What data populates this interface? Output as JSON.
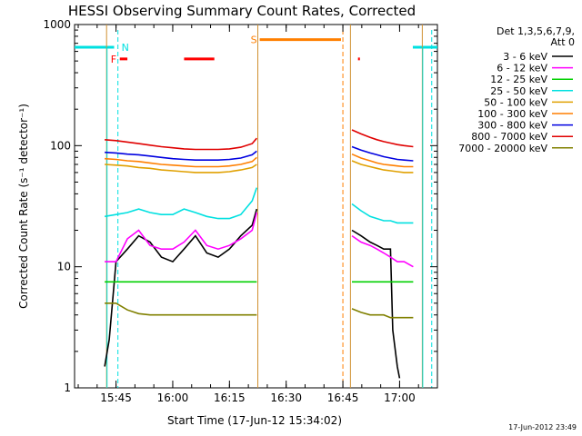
{
  "chart_data": {
    "type": "line",
    "title": "HESSI Observing Summary Count Rates, Corrected",
    "xlabel": "Start Time (17-Jun-12 15:34:02)",
    "ylabel": "Corrected Count Rate (s⁻¹ detector⁻¹)",
    "y_scale": "log",
    "ylim": [
      1,
      1000
    ],
    "xlim": [
      "15:34:02",
      "17:10:00"
    ],
    "y_ticks": [
      "1",
      "10",
      "100",
      "1000"
    ],
    "x_ticks": [
      {
        "t": "15:45",
        "label": "15:45"
      },
      {
        "t": "16:00",
        "label": "16:00"
      },
      {
        "t": "16:15",
        "label": "16:15"
      },
      {
        "t": "16:30",
        "label": "16:30"
      },
      {
        "t": "16:45",
        "label": "16:45"
      },
      {
        "t": "17:00",
        "label": "17:00"
      }
    ],
    "legend": {
      "header": [
        "Det 1,3,5,6,7,9,",
        "Att 0"
      ],
      "placement": "right-outside"
    },
    "footer_stamp": "17-Jun-2012 23:49",
    "segments": [
      {
        "start": "15:42:30",
        "end": "16:22:30"
      },
      {
        "start": "16:47:00",
        "end": "17:06:00"
      }
    ],
    "series": [
      {
        "name": "3 - 6 keV",
        "color": "#000000",
        "points_seg1": [
          [
            15.7,
            1.5
          ],
          [
            15.72,
            2.5
          ],
          [
            15.75,
            11
          ],
          [
            15.8,
            14
          ],
          [
            15.85,
            18
          ],
          [
            15.9,
            16
          ],
          [
            15.95,
            12
          ],
          [
            16.0,
            11
          ],
          [
            16.05,
            14
          ],
          [
            16.1,
            18
          ],
          [
            16.15,
            13
          ],
          [
            16.2,
            12
          ],
          [
            16.25,
            14
          ],
          [
            16.3,
            18
          ],
          [
            16.35,
            22
          ],
          [
            16.37,
            30
          ]
        ],
        "points_seg2": [
          [
            16.79,
            20
          ],
          [
            16.83,
            18
          ],
          [
            16.87,
            16
          ],
          [
            16.9,
            15
          ],
          [
            16.93,
            14
          ],
          [
            16.96,
            14
          ],
          [
            16.97,
            3
          ],
          [
            16.99,
            1.5
          ],
          [
            17.0,
            1.2
          ]
        ]
      },
      {
        "name": "6 - 12 keV",
        "color": "#ff00ff",
        "points_seg1": [
          [
            15.7,
            11
          ],
          [
            15.75,
            11
          ],
          [
            15.8,
            17
          ],
          [
            15.85,
            20
          ],
          [
            15.9,
            15
          ],
          [
            15.95,
            14
          ],
          [
            16.0,
            14
          ],
          [
            16.05,
            16
          ],
          [
            16.1,
            20
          ],
          [
            16.15,
            15
          ],
          [
            16.2,
            14
          ],
          [
            16.25,
            15
          ],
          [
            16.3,
            17
          ],
          [
            16.35,
            20
          ],
          [
            16.37,
            28
          ]
        ],
        "points_seg2": [
          [
            16.79,
            18
          ],
          [
            16.83,
            16
          ],
          [
            16.87,
            15
          ],
          [
            16.9,
            14
          ],
          [
            16.93,
            13
          ],
          [
            16.96,
            12
          ],
          [
            16.99,
            11
          ],
          [
            17.02,
            11
          ],
          [
            17.06,
            10
          ]
        ]
      },
      {
        "name": "12 - 25 keV",
        "color": "#00d000",
        "points_seg1": [
          [
            15.7,
            7.5
          ],
          [
            15.8,
            7.5
          ],
          [
            15.9,
            7.5
          ],
          [
            16.0,
            7.5
          ],
          [
            16.1,
            7.5
          ],
          [
            16.2,
            7.5
          ],
          [
            16.3,
            7.5
          ],
          [
            16.37,
            7.5
          ]
        ],
        "points_seg2": [
          [
            16.79,
            7.5
          ],
          [
            16.9,
            7.5
          ],
          [
            17.0,
            7.5
          ],
          [
            17.06,
            7.5
          ]
        ]
      },
      {
        "name": "25 - 50 keV",
        "color": "#00e0e0",
        "points_seg1": [
          [
            15.7,
            26
          ],
          [
            15.75,
            27
          ],
          [
            15.8,
            28
          ],
          [
            15.85,
            30
          ],
          [
            15.9,
            28
          ],
          [
            15.95,
            27
          ],
          [
            16.0,
            27
          ],
          [
            16.05,
            30
          ],
          [
            16.1,
            28
          ],
          [
            16.15,
            26
          ],
          [
            16.2,
            25
          ],
          [
            16.25,
            25
          ],
          [
            16.3,
            27
          ],
          [
            16.35,
            35
          ],
          [
            16.37,
            45
          ]
        ],
        "points_seg2": [
          [
            16.79,
            33
          ],
          [
            16.83,
            29
          ],
          [
            16.87,
            26
          ],
          [
            16.9,
            25
          ],
          [
            16.93,
            24
          ],
          [
            16.96,
            24
          ],
          [
            16.99,
            23
          ],
          [
            17.02,
            23
          ],
          [
            17.06,
            23
          ]
        ]
      },
      {
        "name": "50 - 100 keV",
        "color": "#e0a000",
        "points_seg1": [
          [
            15.7,
            70
          ],
          [
            15.75,
            69
          ],
          [
            15.8,
            68
          ],
          [
            15.85,
            66
          ],
          [
            15.9,
            65
          ],
          [
            15.95,
            63
          ],
          [
            16.0,
            62
          ],
          [
            16.05,
            61
          ],
          [
            16.1,
            60
          ],
          [
            16.15,
            60
          ],
          [
            16.2,
            60
          ],
          [
            16.25,
            61
          ],
          [
            16.3,
            63
          ],
          [
            16.35,
            66
          ],
          [
            16.37,
            70
          ]
        ],
        "points_seg2": [
          [
            16.79,
            75
          ],
          [
            16.83,
            70
          ],
          [
            16.87,
            67
          ],
          [
            16.9,
            65
          ],
          [
            16.93,
            63
          ],
          [
            16.96,
            62
          ],
          [
            16.99,
            61
          ],
          [
            17.02,
            60
          ],
          [
            17.06,
            60
          ]
        ]
      },
      {
        "name": "100 - 300 keV",
        "color": "#ff7f00",
        "points_seg1": [
          [
            15.7,
            78
          ],
          [
            15.75,
            77
          ],
          [
            15.8,
            75
          ],
          [
            15.85,
            74
          ],
          [
            15.9,
            72
          ],
          [
            15.95,
            70
          ],
          [
            16.0,
            69
          ],
          [
            16.05,
            68
          ],
          [
            16.1,
            67
          ],
          [
            16.15,
            67
          ],
          [
            16.2,
            67
          ],
          [
            16.25,
            68
          ],
          [
            16.3,
            70
          ],
          [
            16.35,
            74
          ],
          [
            16.37,
            80
          ]
        ],
        "points_seg2": [
          [
            16.79,
            85
          ],
          [
            16.83,
            79
          ],
          [
            16.87,
            75
          ],
          [
            16.9,
            72
          ],
          [
            16.93,
            70
          ],
          [
            16.96,
            69
          ],
          [
            16.99,
            68
          ],
          [
            17.02,
            67
          ],
          [
            17.06,
            67
          ]
        ]
      },
      {
        "name": "300 - 800 keV",
        "color": "#0000e0",
        "points_seg1": [
          [
            15.7,
            88
          ],
          [
            15.75,
            87
          ],
          [
            15.8,
            85
          ],
          [
            15.85,
            84
          ],
          [
            15.9,
            82
          ],
          [
            15.95,
            80
          ],
          [
            16.0,
            78
          ],
          [
            16.05,
            77
          ],
          [
            16.1,
            76
          ],
          [
            16.15,
            76
          ],
          [
            16.2,
            76
          ],
          [
            16.25,
            77
          ],
          [
            16.3,
            79
          ],
          [
            16.35,
            84
          ],
          [
            16.37,
            90
          ]
        ],
        "points_seg2": [
          [
            16.79,
            98
          ],
          [
            16.83,
            92
          ],
          [
            16.87,
            87
          ],
          [
            16.9,
            84
          ],
          [
            16.93,
            81
          ],
          [
            16.96,
            79
          ],
          [
            16.99,
            77
          ],
          [
            17.02,
            76
          ],
          [
            17.06,
            75
          ]
        ]
      },
      {
        "name": "800 - 7000 keV",
        "color": "#e00000",
        "points_seg1": [
          [
            15.7,
            112
          ],
          [
            15.75,
            110
          ],
          [
            15.8,
            107
          ],
          [
            15.85,
            104
          ],
          [
            15.9,
            101
          ],
          [
            15.95,
            98
          ],
          [
            16.0,
            96
          ],
          [
            16.05,
            94
          ],
          [
            16.1,
            93
          ],
          [
            16.15,
            93
          ],
          [
            16.2,
            93
          ],
          [
            16.25,
            94
          ],
          [
            16.3,
            97
          ],
          [
            16.35,
            104
          ],
          [
            16.37,
            115
          ]
        ],
        "points_seg2": [
          [
            16.79,
            135
          ],
          [
            16.83,
            125
          ],
          [
            16.87,
            117
          ],
          [
            16.9,
            112
          ],
          [
            16.93,
            108
          ],
          [
            16.96,
            105
          ],
          [
            16.99,
            102
          ],
          [
            17.02,
            100
          ],
          [
            17.06,
            98
          ]
        ]
      },
      {
        "name": "7000 - 20000 keV",
        "color": "#808000",
        "points_seg1": [
          [
            15.7,
            5
          ],
          [
            15.75,
            5
          ],
          [
            15.8,
            4.4
          ],
          [
            15.85,
            4.1
          ],
          [
            15.9,
            4
          ],
          [
            15.95,
            4
          ],
          [
            16.0,
            4
          ],
          [
            16.05,
            4
          ],
          [
            16.1,
            4
          ],
          [
            16.15,
            4
          ],
          [
            16.2,
            4
          ],
          [
            16.25,
            4
          ],
          [
            16.3,
            4
          ],
          [
            16.37,
            4
          ]
        ],
        "points_seg2": [
          [
            16.79,
            4.5
          ],
          [
            16.83,
            4.2
          ],
          [
            16.87,
            4
          ],
          [
            16.9,
            4
          ],
          [
            16.93,
            4
          ],
          [
            16.96,
            3.8
          ],
          [
            16.99,
            3.8
          ],
          [
            17.02,
            3.8
          ],
          [
            17.06,
            3.8
          ]
        ]
      }
    ],
    "flags": [
      {
        "label": "N",
        "color": "#00e0e0",
        "y": 650,
        "line_style": "dashed",
        "bars": [
          [
            "15:34:02",
            "15:44:30"
          ],
          [
            "17:03:30",
            "17:10:00"
          ]
        ],
        "boundaries": [
          "15:45:30",
          "17:08:30"
        ]
      },
      {
        "label": "F",
        "color": "#ff0000",
        "y": 520,
        "line_style": "none",
        "bars": [
          [
            "15:46:00",
            "15:48:00"
          ],
          [
            "16:03:00",
            "16:11:00"
          ],
          [
            "16:49:00",
            "16:49:30"
          ]
        ],
        "boundaries": []
      },
      {
        "label": "S",
        "color": "#ff7f00",
        "y": 750,
        "line_style": "dashed",
        "bars": [
          [
            "16:23:00",
            "16:44:30"
          ]
        ],
        "boundaries": [
          "16:22:30",
          "16:45:00"
        ]
      }
    ]
  }
}
